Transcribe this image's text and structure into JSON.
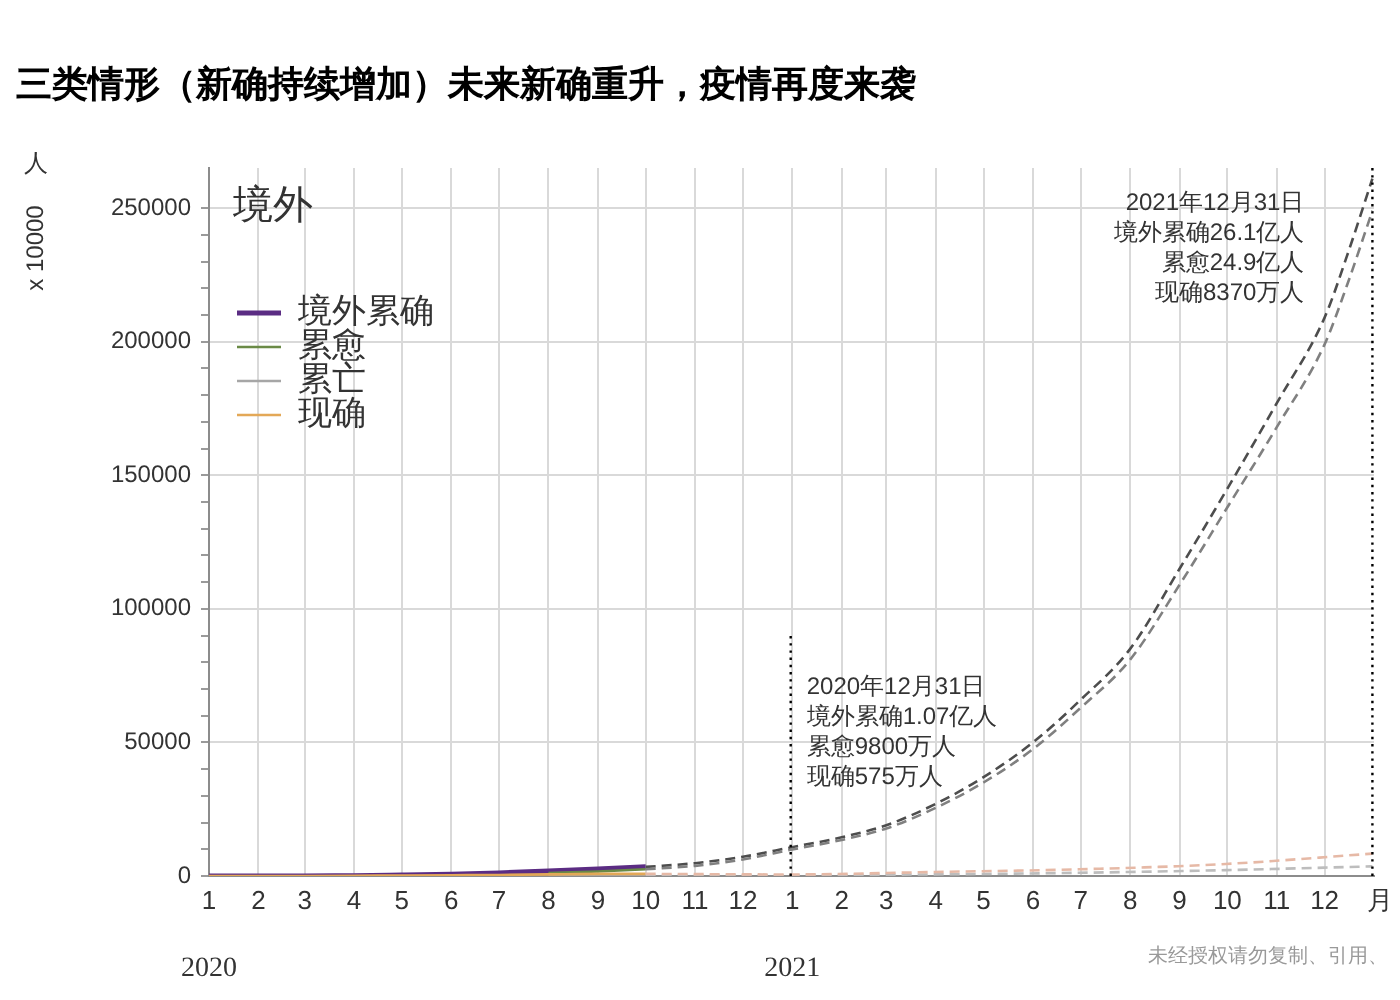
{
  "chart_data": {
    "type": "line",
    "title": "三类情形（新确持续增加）未来新确重升，疫情再度来袭",
    "subtitle": "境外",
    "ylabel": "人",
    "xlabel": "月",
    "annotations": [
      "x 10000",
      "未经授权请勿复制、引用、",
      "境外累确1.07亿人",
      "累愈9800万人",
      "现确575万人",
      "境外累确26.1亿人",
      "累愈24.9亿人",
      "现确8370万人"
    ],
    "x": [
      "2020-01-01",
      "2020-02-01",
      "2020-03-01",
      "2020-04-01",
      "2020-05-01",
      "2020-06-01",
      "2020-07-01",
      "2020-08-01",
      "2020-09-01",
      "2020-10-01"
    ],
    "series": [
      {
        "name": "境外累确",
        "color": "#5b2c83",
        "values": [
          0,
          0,
          0,
          100,
          300,
          600,
          1100,
          1800,
          2600,
          3400
        ]
      },
      {
        "name": "累愈",
        "color": "#6a8a46",
        "values": [
          null,
          null,
          null,
          null,
          null,
          null,
          null,
          1100,
          1700,
          2500
        ]
      },
      {
        "name": "累亡",
        "color": "#a6a6a6",
        "values": [
          null,
          null,
          null,
          null,
          null,
          null,
          null,
          100,
          100,
          100
        ]
      },
      {
        "name": "现确",
        "color": "#e3a857",
        "values": [
          0,
          0,
          0,
          100,
          200,
          300,
          400,
          600,
          800,
          800
        ]
      },
      {
        "color": "#4d4d4d",
        "line_style": "dashed",
        "x": [
          "2020-10-01",
          "2020-11-01",
          "2020-12-01",
          "2020-12-31",
          "2021-02-01",
          "2021-03-01",
          "2021-04-01",
          "2021-05-01",
          "2021-06-01",
          "2021-07-01",
          "2021-08-01",
          "2021-09-01",
          "2021-10-01",
          "2021-11-01",
          "2021-12-01",
          "2021-12-15",
          "2021-12-31"
        ],
        "values": [
          3400,
          4800,
          7200,
          10700,
          14500,
          19000,
          27000,
          37000,
          50000,
          66000,
          85000,
          115000,
          145000,
          177000,
          209000,
          232000,
          261000
        ]
      },
      {
        "color": "#808080",
        "line_style": "dashed",
        "x": [
          "2020-10-01",
          "2020-11-01",
          "2020-12-01",
          "2020-12-31",
          "2021-02-01",
          "2021-03-01",
          "2021-04-01",
          "2021-05-01",
          "2021-06-01",
          "2021-07-01",
          "2021-08-01",
          "2021-09-01",
          "2021-10-01",
          "2021-11-01",
          "2021-12-01",
          "2021-12-15",
          "2021-12-31"
        ],
        "values": [
          2500,
          3800,
          6200,
          9800,
          13500,
          17800,
          25500,
          35000,
          47500,
          63000,
          81000,
          109000,
          138000,
          168000,
          199000,
          221000,
          249000
        ]
      },
      {
        "color": "#bdbdbd",
        "line_style": "dashed",
        "x": [
          "2020-10-01",
          "2020-12-31",
          "2021-03-31",
          "2021-06-30",
          "2021-09-30",
          "2021-12-31"
        ],
        "values": [
          100,
          300,
          600,
          1200,
          2200,
          3600
        ]
      },
      {
        "color": "#e6b9a6",
        "line_style": "dashed",
        "x": [
          "2020-10-01",
          "2020-12-31",
          "2021-03-31",
          "2021-06-30",
          "2021-09-30",
          "2021-12-31"
        ],
        "values": [
          800,
          575,
          1500,
          2500,
          4500,
          8370
        ]
      }
    ],
    "xlim": [
      "2020-01-01",
      "2022-01-01"
    ],
    "xticks": [
      {
        "value": "2020-01-01",
        "label": "1"
      },
      {
        "value": "2020-02-01",
        "label": "2"
      },
      {
        "value": "2020-03-01",
        "label": "3"
      },
      {
        "value": "2020-04-01",
        "label": "4"
      },
      {
        "value": "2020-05-01",
        "label": "5"
      },
      {
        "value": "2020-06-01",
        "label": "6"
      },
      {
        "value": "2020-07-01",
        "label": "7"
      },
      {
        "value": "2020-08-01",
        "label": "8"
      },
      {
        "value": "2020-09-01",
        "label": "9"
      },
      {
        "value": "2020-10-01",
        "label": "10"
      },
      {
        "value": "2020-11-01",
        "label": "11"
      },
      {
        "value": "2020-12-01",
        "label": "12"
      },
      {
        "value": "2021-01-01",
        "label": "1"
      },
      {
        "value": "2021-02-01",
        "label": "2"
      },
      {
        "value": "2021-03-01",
        "label": "3"
      },
      {
        "value": "2021-04-01",
        "label": "4"
      },
      {
        "value": "2021-05-01",
        "label": "5"
      },
      {
        "value": "2021-06-01",
        "label": "6"
      },
      {
        "value": "2021-07-01",
        "label": "7"
      },
      {
        "value": "2021-08-01",
        "label": "8"
      },
      {
        "value": "2021-09-01",
        "label": "9"
      },
      {
        "value": "2021-10-01",
        "label": "10"
      },
      {
        "value": "2021-11-01",
        "label": "11"
      },
      {
        "value": "2021-12-01",
        "label": "12"
      }
    ],
    "x2lim": [
      "2020-01-01",
      "2022-01-01"
    ],
    "x2ticks": [
      {
        "value": "2020-01-01",
        "label": "2020"
      },
      {
        "value": "2021-01-01",
        "label": "2021"
      }
    ],
    "ylim": [
      0,
      265000
    ],
    "yticks": [
      0,
      {
        "value": 10000,
        "label": null
      },
      {
        "value": 20000,
        "label": null
      },
      {
        "value": 30000,
        "label": null
      },
      {
        "value": 40000,
        "label": null
      },
      50000,
      {
        "value": 60000,
        "label": null
      },
      {
        "value": 70000,
        "label": null
      },
      {
        "value": 80000,
        "label": null
      },
      {
        "value": 90000,
        "label": null
      },
      100000,
      {
        "value": 110000,
        "label": null
      },
      {
        "value": 120000,
        "label": null
      },
      {
        "value": 130000,
        "label": null
      },
      {
        "value": 140000,
        "label": null
      },
      150000,
      {
        "value": 160000,
        "label": null
      },
      {
        "value": 170000,
        "label": null
      },
      {
        "value": 180000,
        "label": null
      },
      {
        "value": 190000,
        "label": null
      },
      200000,
      {
        "value": 210000,
        "label": null
      },
      {
        "value": 220000,
        "label": null
      },
      {
        "value": 230000,
        "label": null
      },
      {
        "value": 240000,
        "label": null
      },
      250000
    ],
    "ref_lines": [
      {
        "axis": "x",
        "value": "2020-12-31",
        "label": "2020年12月31日",
        "color": "#000000",
        "line_style": "dotted"
      },
      {
        "axis": "x",
        "value": "2021-12-31",
        "label": "2021年12月31日",
        "color": "#000000",
        "line_style": "dotted"
      }
    ],
    "grid": true,
    "legend": "top left",
    "marker": "none",
    "line_style": "solid"
  }
}
